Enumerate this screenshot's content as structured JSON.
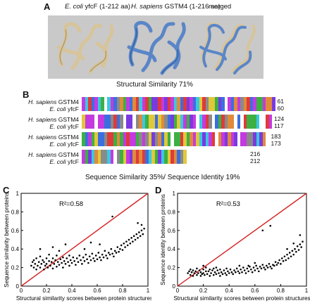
{
  "panelA": {
    "letter": "A",
    "label_ecoli_species": "E. coli",
    "label_ecoli_rest": " yfcF (1-212 aa)",
    "label_hs_species": "H. sapiens",
    "label_hs_rest": " GSTM4 (1-216 aa)",
    "label_merged": "merged",
    "caption": "Structural Similarity 71%",
    "colors": {
      "ecoli": "#d8c49a",
      "hsapiens": "#5a86c8",
      "background": "#c9c9c9"
    }
  },
  "panelB": {
    "letter": "B",
    "blocks": [
      {
        "hs_label": "H. sapiens",
        "hs_name": "GSTM4",
        "ec_label": "E. coli",
        "ec_name": "yfcF",
        "hs_end": "61",
        "ec_end": "60"
      },
      {
        "hs_label": "H. sapiens",
        "hs_name": "GSTM4",
        "ec_label": "E. coli",
        "ec_name": "yfcF",
        "hs_end": "124",
        "ec_end": "117"
      },
      {
        "hs_label": "H. sapiens",
        "hs_name": "GSTM4",
        "ec_label": "E. coli",
        "ec_name": "yfcF",
        "hs_end": "183",
        "ec_end": "173"
      },
      {
        "hs_label": "H. sapiens",
        "hs_name": "GSTM4",
        "ec_label": "E. coli",
        "ec_name": "yfcF",
        "hs_end": "216",
        "ec_end": "212"
      }
    ],
    "caption": "Sequence Similarity 35%/ Sequence Identity 19%"
  },
  "panelC": {
    "letter": "C",
    "annotation": "R²=0.58",
    "ylabel": "Sequence similarity between proteins",
    "xlabel": "Structural similarity scores between protein structures"
  },
  "panelD": {
    "letter": "D",
    "annotation": "R²=0.53",
    "ylabel": "Sequence identity between proteins",
    "xlabel": "Structural similarity scores between protein structures"
  },
  "chart_data": [
    {
      "type": "scatter",
      "panel": "C",
      "xlim": [
        0,
        1.0
      ],
      "ylim": [
        0,
        1.0
      ],
      "xticks": [
        "0",
        "0.2",
        "0.4",
        "0.6",
        "0.8",
        "1"
      ],
      "yticks": [
        "0",
        "0.2",
        "0.4",
        "0.6",
        "0.8",
        "1"
      ],
      "xlabel": "Structural similarity scores between protein structures",
      "ylabel": "Sequence similarity between proteins",
      "annotation": "R²=0.58",
      "reference_line": {
        "from": [
          0,
          0
        ],
        "to": [
          1,
          1
        ],
        "color": "#d62020"
      },
      "grid": false,
      "points": [
        [
          0.08,
          0.22
        ],
        [
          0.09,
          0.26
        ],
        [
          0.1,
          0.2
        ],
        [
          0.1,
          0.28
        ],
        [
          0.11,
          0.24
        ],
        [
          0.12,
          0.18
        ],
        [
          0.12,
          0.3
        ],
        [
          0.13,
          0.22
        ],
        [
          0.14,
          0.26
        ],
        [
          0.15,
          0.2
        ],
        [
          0.15,
          0.32
        ],
        [
          0.16,
          0.24
        ],
        [
          0.17,
          0.28
        ],
        [
          0.18,
          0.18
        ],
        [
          0.18,
          0.26
        ],
        [
          0.19,
          0.22
        ],
        [
          0.2,
          0.3
        ],
        [
          0.2,
          0.24
        ],
        [
          0.21,
          0.2
        ],
        [
          0.22,
          0.27
        ],
        [
          0.22,
          0.34
        ],
        [
          0.23,
          0.22
        ],
        [
          0.24,
          0.26
        ],
        [
          0.25,
          0.19
        ],
        [
          0.25,
          0.3
        ],
        [
          0.26,
          0.24
        ],
        [
          0.27,
          0.28
        ],
        [
          0.28,
          0.21
        ],
        [
          0.28,
          0.33
        ],
        [
          0.29,
          0.26
        ],
        [
          0.3,
          0.23
        ],
        [
          0.31,
          0.29
        ],
        [
          0.32,
          0.25
        ],
        [
          0.33,
          0.2
        ],
        [
          0.33,
          0.31
        ],
        [
          0.34,
          0.27
        ],
        [
          0.35,
          0.24
        ],
        [
          0.36,
          0.3
        ],
        [
          0.37,
          0.26
        ],
        [
          0.38,
          0.22
        ],
        [
          0.38,
          0.33
        ],
        [
          0.39,
          0.28
        ],
        [
          0.4,
          0.25
        ],
        [
          0.41,
          0.31
        ],
        [
          0.42,
          0.27
        ],
        [
          0.43,
          0.23
        ],
        [
          0.44,
          0.3
        ],
        [
          0.45,
          0.26
        ],
        [
          0.46,
          0.33
        ],
        [
          0.47,
          0.28
        ],
        [
          0.48,
          0.24
        ],
        [
          0.49,
          0.31
        ],
        [
          0.5,
          0.27
        ],
        [
          0.51,
          0.34
        ],
        [
          0.52,
          0.29
        ],
        [
          0.53,
          0.25
        ],
        [
          0.54,
          0.32
        ],
        [
          0.55,
          0.28
        ],
        [
          0.56,
          0.35
        ],
        [
          0.57,
          0.3
        ],
        [
          0.58,
          0.27
        ],
        [
          0.59,
          0.33
        ],
        [
          0.6,
          0.29
        ],
        [
          0.61,
          0.36
        ],
        [
          0.62,
          0.31
        ],
        [
          0.63,
          0.28
        ],
        [
          0.64,
          0.34
        ],
        [
          0.65,
          0.31
        ],
        [
          0.66,
          0.38
        ],
        [
          0.67,
          0.33
        ],
        [
          0.68,
          0.3
        ],
        [
          0.69,
          0.36
        ],
        [
          0.7,
          0.34
        ],
        [
          0.71,
          0.4
        ],
        [
          0.72,
          0.35
        ],
        [
          0.73,
          0.32
        ],
        [
          0.74,
          0.38
        ],
        [
          0.75,
          0.36
        ],
        [
          0.76,
          0.42
        ],
        [
          0.77,
          0.37
        ],
        [
          0.78,
          0.4
        ],
        [
          0.79,
          0.44
        ],
        [
          0.8,
          0.39
        ],
        [
          0.81,
          0.46
        ],
        [
          0.82,
          0.42
        ],
        [
          0.83,
          0.48
        ],
        [
          0.84,
          0.44
        ],
        [
          0.85,
          0.5
        ],
        [
          0.86,
          0.46
        ],
        [
          0.87,
          0.52
        ],
        [
          0.88,
          0.48
        ],
        [
          0.89,
          0.54
        ],
        [
          0.9,
          0.5
        ],
        [
          0.91,
          0.56
        ],
        [
          0.92,
          0.52
        ],
        [
          0.93,
          0.58
        ],
        [
          0.94,
          0.54
        ],
        [
          0.95,
          0.6
        ],
        [
          0.96,
          0.56
        ],
        [
          0.97,
          0.62
        ],
        [
          0.35,
          0.45
        ],
        [
          0.55,
          0.47
        ],
        [
          0.72,
          0.75
        ],
        [
          0.15,
          0.4
        ],
        [
          0.25,
          0.42
        ],
        [
          0.62,
          0.45
        ],
        [
          0.92,
          0.68
        ],
        [
          0.95,
          0.66
        ],
        [
          0.3,
          0.38
        ],
        [
          0.5,
          0.4
        ]
      ]
    },
    {
      "type": "scatter",
      "panel": "D",
      "xlim": [
        0,
        1.0
      ],
      "ylim": [
        0,
        1.0
      ],
      "xticks": [
        "0",
        "0.2",
        "0.4",
        "0.6",
        "0.8",
        "1"
      ],
      "yticks": [
        "0",
        "0.2",
        "0.4",
        "0.6",
        "0.8",
        "1"
      ],
      "xlabel": "Structural similarity scores between protein structures",
      "ylabel": "Sequence identity between proteins",
      "annotation": "R²=0.53",
      "reference_line": {
        "from": [
          0,
          0
        ],
        "to": [
          1,
          1
        ],
        "color": "#d62020"
      },
      "grid": false,
      "points": [
        [
          0.08,
          0.14
        ],
        [
          0.09,
          0.16
        ],
        [
          0.1,
          0.12
        ],
        [
          0.1,
          0.18
        ],
        [
          0.11,
          0.15
        ],
        [
          0.12,
          0.11
        ],
        [
          0.12,
          0.17
        ],
        [
          0.13,
          0.14
        ],
        [
          0.14,
          0.16
        ],
        [
          0.15,
          0.12
        ],
        [
          0.15,
          0.19
        ],
        [
          0.16,
          0.14
        ],
        [
          0.17,
          0.17
        ],
        [
          0.18,
          0.11
        ],
        [
          0.18,
          0.15
        ],
        [
          0.19,
          0.13
        ],
        [
          0.2,
          0.18
        ],
        [
          0.2,
          0.14
        ],
        [
          0.21,
          0.12
        ],
        [
          0.22,
          0.16
        ],
        [
          0.22,
          0.2
        ],
        [
          0.23,
          0.13
        ],
        [
          0.24,
          0.16
        ],
        [
          0.25,
          0.11
        ],
        [
          0.25,
          0.18
        ],
        [
          0.26,
          0.14
        ],
        [
          0.27,
          0.17
        ],
        [
          0.28,
          0.12
        ],
        [
          0.28,
          0.19
        ],
        [
          0.29,
          0.15
        ],
        [
          0.3,
          0.13
        ],
        [
          0.31,
          0.17
        ],
        [
          0.32,
          0.14
        ],
        [
          0.33,
          0.11
        ],
        [
          0.33,
          0.18
        ],
        [
          0.34,
          0.15
        ],
        [
          0.35,
          0.13
        ],
        [
          0.36,
          0.17
        ],
        [
          0.37,
          0.14
        ],
        [
          0.38,
          0.12
        ],
        [
          0.38,
          0.19
        ],
        [
          0.39,
          0.16
        ],
        [
          0.4,
          0.14
        ],
        [
          0.41,
          0.18
        ],
        [
          0.42,
          0.15
        ],
        [
          0.43,
          0.13
        ],
        [
          0.44,
          0.17
        ],
        [
          0.45,
          0.15
        ],
        [
          0.46,
          0.19
        ],
        [
          0.47,
          0.16
        ],
        [
          0.48,
          0.14
        ],
        [
          0.49,
          0.18
        ],
        [
          0.5,
          0.15
        ],
        [
          0.51,
          0.2
        ],
        [
          0.52,
          0.17
        ],
        [
          0.53,
          0.14
        ],
        [
          0.54,
          0.19
        ],
        [
          0.55,
          0.16
        ],
        [
          0.56,
          0.21
        ],
        [
          0.57,
          0.18
        ],
        [
          0.58,
          0.15
        ],
        [
          0.59,
          0.2
        ],
        [
          0.6,
          0.17
        ],
        [
          0.61,
          0.22
        ],
        [
          0.62,
          0.19
        ],
        [
          0.63,
          0.16
        ],
        [
          0.64,
          0.21
        ],
        [
          0.65,
          0.19
        ],
        [
          0.66,
          0.23
        ],
        [
          0.67,
          0.2
        ],
        [
          0.68,
          0.18
        ],
        [
          0.69,
          0.22
        ],
        [
          0.7,
          0.2
        ],
        [
          0.71,
          0.24
        ],
        [
          0.72,
          0.21
        ],
        [
          0.73,
          0.19
        ],
        [
          0.74,
          0.23
        ],
        [
          0.75,
          0.22
        ],
        [
          0.76,
          0.26
        ],
        [
          0.77,
          0.23
        ],
        [
          0.78,
          0.25
        ],
        [
          0.79,
          0.28
        ],
        [
          0.8,
          0.24
        ],
        [
          0.81,
          0.3
        ],
        [
          0.82,
          0.27
        ],
        [
          0.83,
          0.32
        ],
        [
          0.84,
          0.28
        ],
        [
          0.85,
          0.34
        ],
        [
          0.86,
          0.3
        ],
        [
          0.87,
          0.36
        ],
        [
          0.88,
          0.32
        ],
        [
          0.89,
          0.38
        ],
        [
          0.9,
          0.34
        ],
        [
          0.91,
          0.4
        ],
        [
          0.92,
          0.37
        ],
        [
          0.93,
          0.43
        ],
        [
          0.94,
          0.39
        ],
        [
          0.95,
          0.45
        ],
        [
          0.96,
          0.42
        ],
        [
          0.97,
          0.48
        ],
        [
          0.66,
          0.6
        ],
        [
          0.72,
          0.65
        ],
        [
          0.48,
          0.22
        ],
        [
          0.3,
          0.2
        ],
        [
          0.2,
          0.22
        ],
        [
          0.55,
          0.22
        ],
        [
          0.9,
          0.46
        ],
        [
          0.95,
          0.55
        ],
        [
          0.85,
          0.4
        ],
        [
          0.6,
          0.25
        ]
      ]
    }
  ]
}
